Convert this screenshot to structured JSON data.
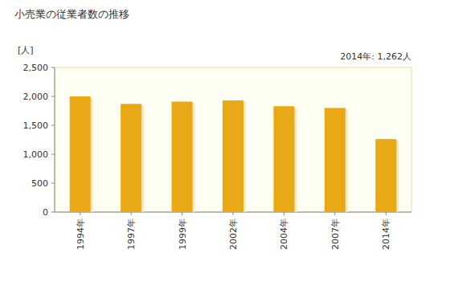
{
  "chart_data": {
    "type": "bar",
    "title": "小売業の従業者数の推移",
    "y_label": "[人]",
    "annotation": "2014年: 1,262人",
    "categories": [
      "1994年",
      "1997年",
      "1999年",
      "2002年",
      "2004年",
      "2007年",
      "2014年"
    ],
    "values": [
      2000,
      1870,
      1910,
      1930,
      1830,
      1800,
      1262
    ],
    "color": "#e9a916",
    "ylim": [
      0,
      2500
    ],
    "yticks": [
      0,
      500,
      {
        "value": 1000,
        "label": "1,000"
      },
      {
        "value": 1500,
        "label": "1,500"
      },
      {
        "value": 2000,
        "label": "2,000"
      },
      {
        "value": 2500,
        "label": "2,500"
      }
    ],
    "grid": false
  }
}
